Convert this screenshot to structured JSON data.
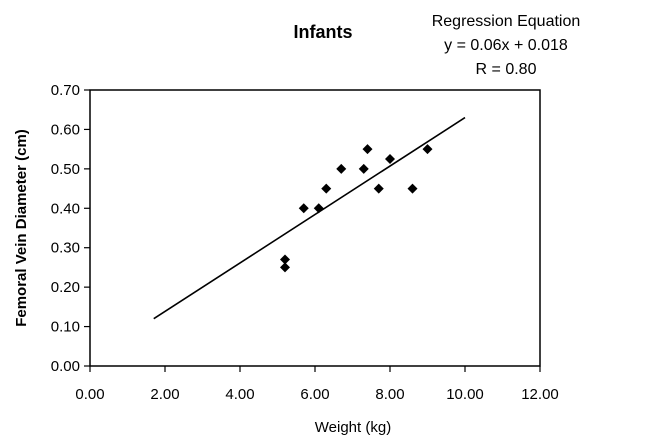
{
  "chart_data": {
    "type": "scatter",
    "title": "Infants",
    "xlabel": "Weight (kg)",
    "ylabel": "Femoral Vein Diameter (cm)",
    "xlim": [
      0,
      12
    ],
    "ylim": [
      0,
      0.7
    ],
    "x_ticks": [
      "0.00",
      "2.00",
      "4.00",
      "6.00",
      "8.00",
      "10.00",
      "12.00"
    ],
    "y_ticks": [
      "0.00",
      "0.10",
      "0.20",
      "0.30",
      "0.40",
      "0.50",
      "0.60",
      "0.70"
    ],
    "grid": false,
    "legend": "none",
    "annotations": [
      "Regression Equation",
      "y = 0.06x + 0.018",
      "R = 0.80"
    ],
    "points": [
      {
        "x": 5.2,
        "y": 0.27
      },
      {
        "x": 5.2,
        "y": 0.25
      },
      {
        "x": 5.7,
        "y": 0.4
      },
      {
        "x": 6.1,
        "y": 0.4
      },
      {
        "x": 6.3,
        "y": 0.45
      },
      {
        "x": 6.7,
        "y": 0.5
      },
      {
        "x": 7.3,
        "y": 0.5
      },
      {
        "x": 7.4,
        "y": 0.55
      },
      {
        "x": 7.7,
        "y": 0.45
      },
      {
        "x": 8.0,
        "y": 0.525
      },
      {
        "x": 8.6,
        "y": 0.45
      },
      {
        "x": 9.0,
        "y": 0.55
      }
    ],
    "regression_line": {
      "x": [
        1.7,
        10.0
      ],
      "y": [
        0.12,
        0.63
      ]
    },
    "marker": "diamond",
    "colors": {
      "marker": "#000000",
      "line": "#000000",
      "axis": "#000000"
    }
  }
}
